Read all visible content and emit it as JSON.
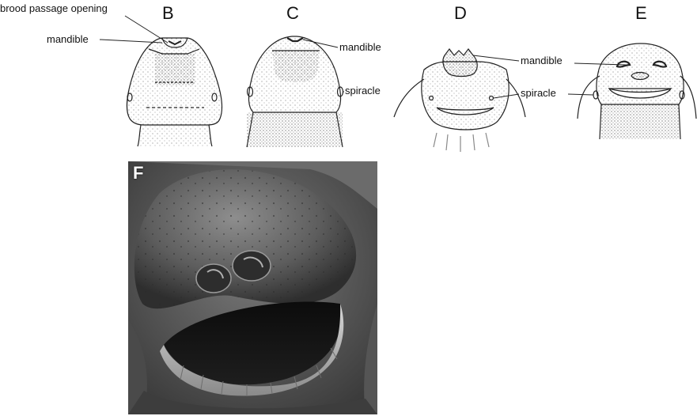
{
  "panels": {
    "B": "B",
    "C": "C",
    "D": "D",
    "E": "E",
    "F": "F"
  },
  "labels": {
    "brood_passage_opening": "brood passage opening",
    "mandible_b": "mandible",
    "mandible_c": "mandible",
    "mandible_de": "mandible",
    "spiracle_c": "spiracle",
    "spiracle_de": "spiracle"
  }
}
